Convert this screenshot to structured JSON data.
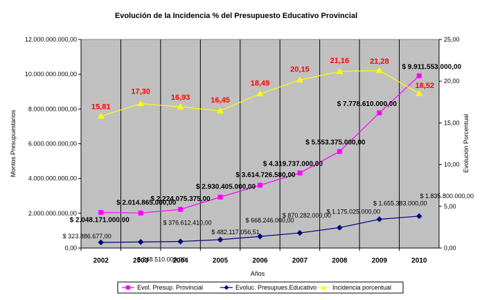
{
  "chart_data": {
    "type": "line",
    "title": "Evolución de la Incidencia % del Presupuesto Educativo Provincial",
    "xlabel": "Años",
    "ylabel_left": "Montos Presupuestarios",
    "ylabel_right": "Evolución Porcentual",
    "categories": [
      "2002",
      "2003",
      "2004",
      "2005",
      "2006",
      "2007",
      "2008",
      "2009",
      "2010"
    ],
    "y_left": {
      "ylim": [
        0,
        12000000000
      ],
      "ticks": [
        "0,00",
        "2.000.000.000,00",
        "4.000.000.000,00",
        "6.000.000.000,00",
        "8.000.000.000,00",
        "10.000.000.000,00",
        "12.000.000.000,00"
      ]
    },
    "y_right": {
      "ylim": [
        0,
        25
      ],
      "ticks": [
        "0,00",
        "5,00",
        "10,00",
        "15,00",
        "20,00",
        "25,00"
      ]
    },
    "grid": "vertical",
    "plot_background": "#c0c0c0",
    "legend_position": "bottom",
    "series": [
      {
        "name": "Evol. Presup. Provincial",
        "axis": "left",
        "color": "#ff00ff",
        "marker": "square",
        "values": [
          2048171000,
          2014865000,
          2224075375,
          2930405000,
          3614726580,
          4319737000,
          5553375000,
          7778610000,
          9911553000
        ],
        "labels": [
          "$ 2.048.171.000,00",
          "$ 2.014.865.000,00",
          "$ 2.224.075.375,00",
          "$ 2.930.405.000,00",
          "$ 3.614.726.580,00",
          "$ 4.319.737.000,00",
          "$ 5.553.375.000,00",
          "$ 7.778.610.000,00",
          "$ 9.911.553.000,00"
        ]
      },
      {
        "name": "Evoluc. Presupues.Educativo",
        "axis": "left",
        "color": "#000080",
        "marker": "diamond",
        "values": [
          323886677,
          348510000,
          376612410,
          482117056.51,
          668246000,
          870282000,
          1175025000,
          1655383000,
          1835800000
        ],
        "labels": [
          "$ 323.886.677,00",
          "$ 348.510.000,00",
          "$ 376.612.410,00",
          "$ 482.117.056,51",
          "$ 668.246.000,00",
          "$ 870.282.000,00",
          "$ 1.175.025.000,00",
          "$ 1.655.383.000,00",
          "$ 1.835.800.000,00"
        ]
      },
      {
        "name": "Incidencia porcentual",
        "axis": "right",
        "color": "#ffff00",
        "marker": "triangle",
        "values": [
          15.81,
          17.3,
          16.93,
          16.45,
          18.49,
          20.15,
          21.16,
          21.28,
          18.52
        ],
        "labels": [
          "15,81",
          "17,30",
          "16,93",
          "16,45",
          "18,49",
          "20,15",
          "21,16",
          "21,28",
          "18,52"
        ]
      }
    ]
  }
}
